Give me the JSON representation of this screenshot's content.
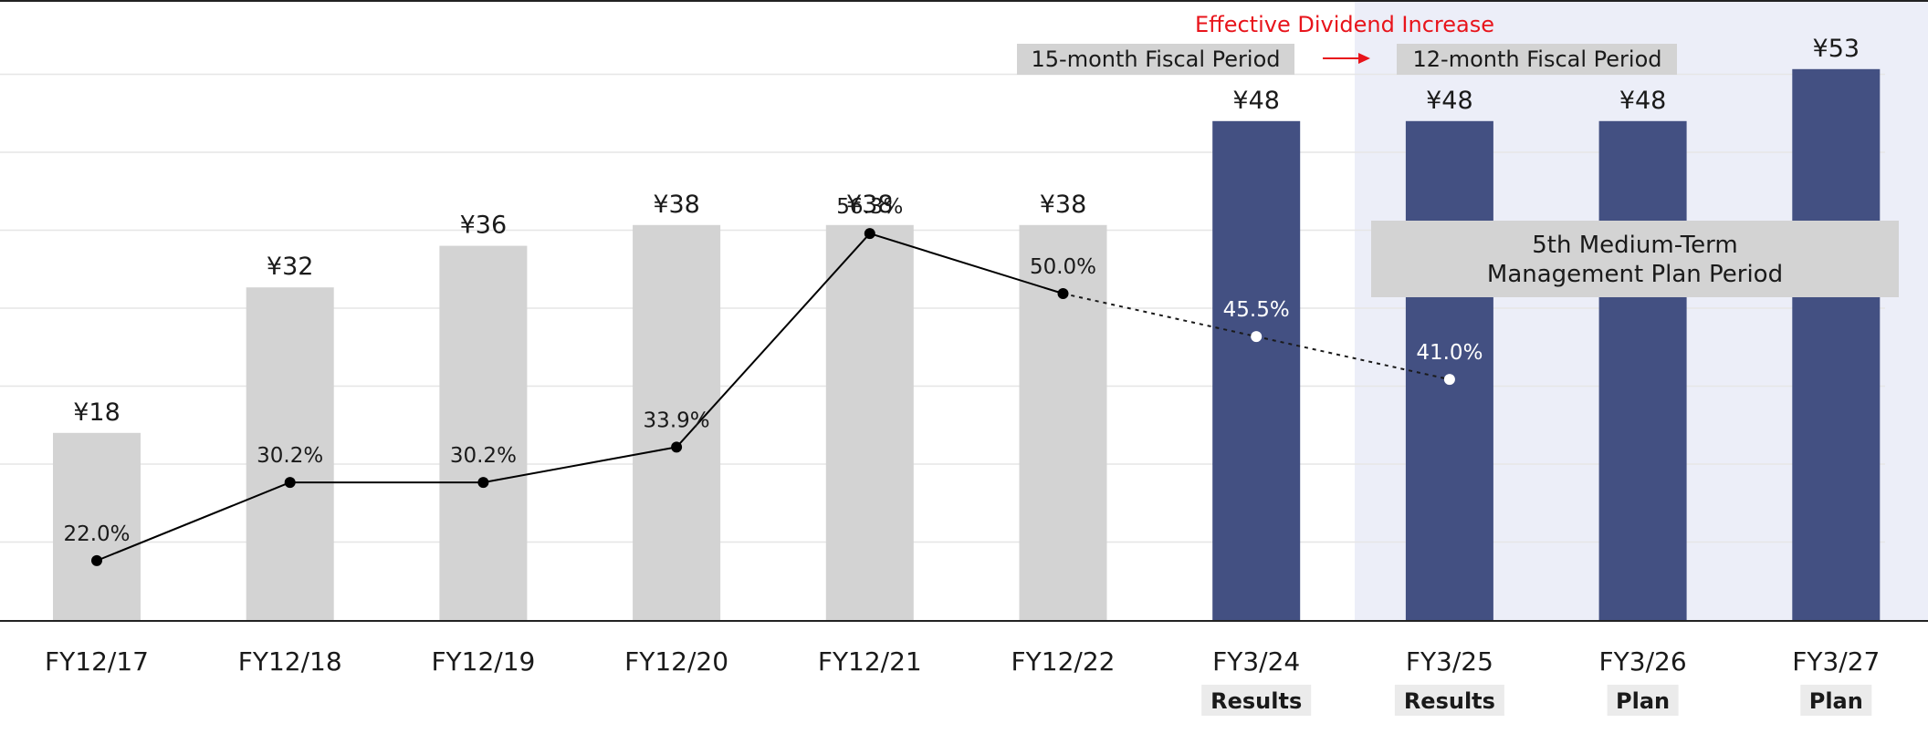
{
  "chart_data": {
    "type": "bar",
    "categories": [
      "FY12/17",
      "FY12/18",
      "FY12/19",
      "FY12/20",
      "FY12/21",
      "FY12/22",
      "FY3/24",
      "FY3/25",
      "FY3/26",
      "FY3/27"
    ],
    "sublabels": [
      "",
      "",
      "",
      "",
      "",
      "",
      "Results",
      "Results",
      "Plan",
      "Plan"
    ],
    "series": [
      {
        "type": "bar",
        "values": [
          18,
          32,
          36,
          38,
          38,
          38,
          48,
          48,
          48,
          53
        ],
        "value_labels": [
          "¥18",
          "¥32",
          "¥36",
          "¥38",
          "¥38",
          "¥38",
          "¥48",
          "¥48",
          "¥48",
          "¥53"
        ]
      },
      {
        "type": "line",
        "values": [
          22.0,
          30.2,
          30.2,
          33.9,
          56.3,
          50.0,
          45.5,
          41.0,
          null,
          null
        ],
        "value_labels": [
          "22.0%",
          "30.2%",
          "30.2%",
          "33.9%",
          "56.3%",
          "50.0%",
          "45.5%",
          "41.0%",
          "",
          ""
        ]
      }
    ],
    "bar_colors": {
      "past": "#d3d3d3",
      "highlight": "#435082"
    },
    "highlight_from_index": 6,
    "line_color": "#000000",
    "ylim": [
      0,
      60
    ],
    "grid": true,
    "shaded_region_from_index": 7,
    "shaded_region_color": "#eceef8",
    "annotations": {
      "effective_increase": "Effective Dividend Increase",
      "period_15": "15-month Fiscal Period",
      "period_12": "12-month Fiscal Period",
      "mtp_line1": "5th Medium-Term",
      "mtp_line2": "Management Plan Period"
    },
    "annotation_color": "#e8141b"
  }
}
